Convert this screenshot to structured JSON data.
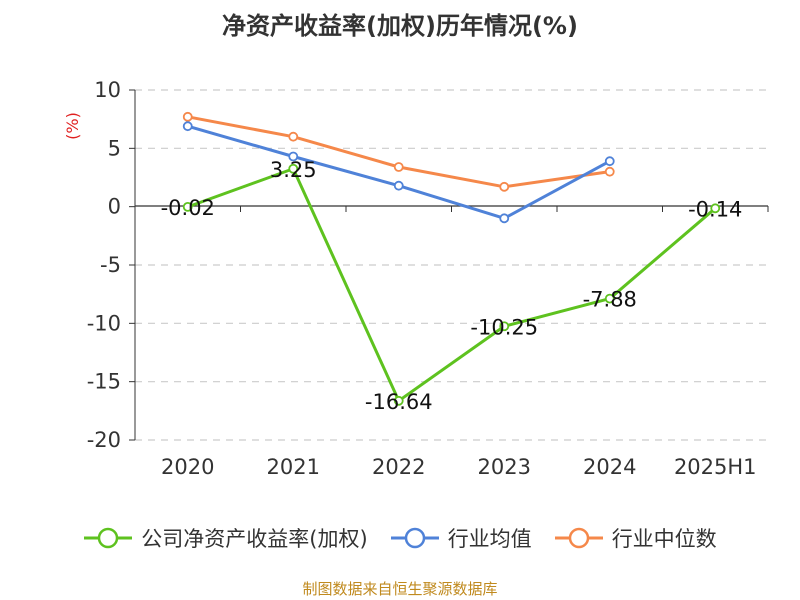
{
  "chart_data": {
    "type": "line",
    "title": "净资产收益率(加权)历年情况(%)",
    "ylabel": "(%)",
    "categories": [
      "2020",
      "2021",
      "2022",
      "2023",
      "2024",
      "2025H1"
    ],
    "ylim": [
      -20,
      10
    ],
    "yticks": [
      10,
      5,
      0,
      -5,
      -10,
      -15,
      -20
    ],
    "grid": true,
    "legend_position": "bottom",
    "series": [
      {
        "name": "公司净资产收益率(加权)",
        "color": "#5ec21f",
        "values": [
          -0.02,
          3.25,
          -16.64,
          -10.25,
          -7.88,
          -0.14
        ],
        "labels": [
          "-0.02",
          "3.25",
          "-16.64",
          "-10.25",
          "-7.88",
          "-0.14"
        ]
      },
      {
        "name": "行业均值",
        "color": "#4f82d8",
        "values": [
          6.9,
          4.3,
          1.8,
          -1.0,
          3.9,
          null
        ]
      },
      {
        "name": "行业中位数",
        "color": "#f5884a",
        "values": [
          7.7,
          6.0,
          3.4,
          1.7,
          3.0,
          null
        ]
      }
    ]
  },
  "footer": {
    "source": "制图数据来自恒生聚源数据库"
  }
}
